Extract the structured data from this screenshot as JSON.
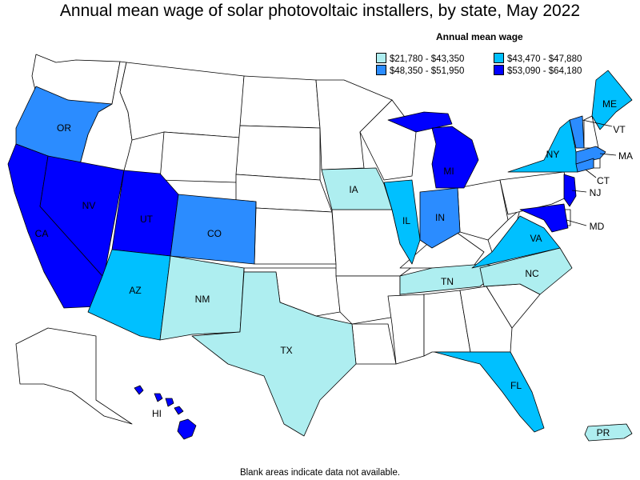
{
  "title": "Annual mean wage of solar photovoltaic installers, by state, May 2022",
  "legend": {
    "title": "Annual mean wage",
    "ranges": [
      {
        "label": "$21,780 - $43,350",
        "color": "#aeeef0"
      },
      {
        "label": "$43,470 - $47,880",
        "color": "#00c0ff"
      },
      {
        "label": "$48,350 - $51,950",
        "color": "#2b8cff"
      },
      {
        "label": "$53,090 - $64,180",
        "color": "#0000ff"
      }
    ]
  },
  "footnote": "Blank areas indicate data not available.",
  "states": {
    "OR": {
      "label": "OR",
      "class": 2
    },
    "CA": {
      "label": "CA",
      "class": 3
    },
    "NV": {
      "label": "NV",
      "class": 3
    },
    "UT": {
      "label": "UT",
      "class": 3
    },
    "AZ": {
      "label": "AZ",
      "class": 1
    },
    "CO": {
      "label": "CO",
      "class": 2
    },
    "NM": {
      "label": "NM",
      "class": 0
    },
    "TX": {
      "label": "TX",
      "class": 0
    },
    "IA": {
      "label": "IA",
      "class": 0
    },
    "IL": {
      "label": "IL",
      "class": 1
    },
    "IN": {
      "label": "IN",
      "class": 2
    },
    "MI": {
      "label": "MI",
      "class": 3
    },
    "TN": {
      "label": "TN",
      "class": 0
    },
    "NC": {
      "label": "NC",
      "class": 0
    },
    "VA": {
      "label": "VA",
      "class": 1
    },
    "FL": {
      "label": "FL",
      "class": 1
    },
    "NY": {
      "label": "NY",
      "class": 1
    },
    "ME": {
      "label": "ME",
      "class": 1
    },
    "VT": {
      "label": "VT",
      "class": 2
    },
    "MA": {
      "label": "MA",
      "class": 2
    },
    "CT": {
      "label": "CT",
      "class": 2
    },
    "NJ": {
      "label": "NJ",
      "class": 3
    },
    "MD": {
      "label": "MD",
      "class": 3
    },
    "HI": {
      "label": "HI",
      "class": 3
    },
    "PR": {
      "label": "PR",
      "class": 0
    }
  }
}
